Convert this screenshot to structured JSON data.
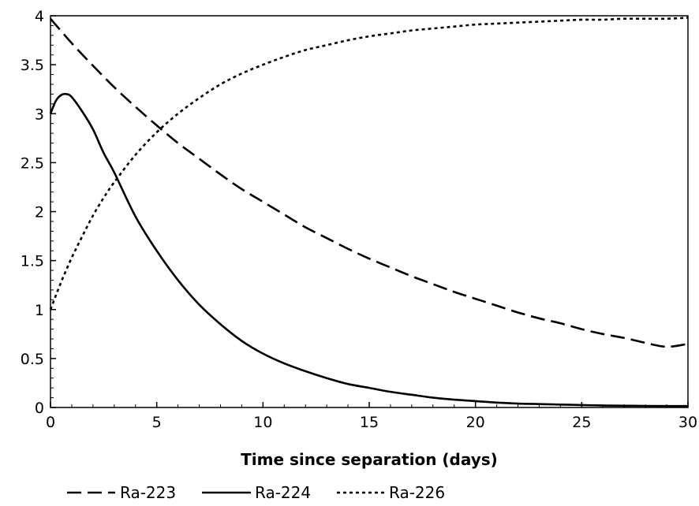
{
  "chart_data": {
    "type": "line",
    "title": "",
    "xlabel": "Time since separation (days)",
    "ylabel": "",
    "xlim": [
      0,
      30
    ],
    "ylim": [
      0,
      4
    ],
    "xticks": [
      "0",
      "5",
      "10",
      "15",
      "20",
      "25",
      "30"
    ],
    "yticks": [
      "0",
      "0.5",
      "1",
      "1.5",
      "2",
      "2.5",
      "3",
      "3.5",
      "4"
    ],
    "grid": false,
    "legend_position": "bottom-left",
    "series": [
      {
        "name": "Ra-223",
        "style": "dashed",
        "color": "#000000",
        "x": [
          0,
          1,
          2,
          3,
          4,
          5,
          6,
          7,
          8,
          9,
          10,
          11,
          12,
          13,
          14,
          15,
          16,
          17,
          18,
          19,
          20,
          21,
          22,
          23,
          24,
          25,
          26,
          27,
          28,
          29,
          30
        ],
        "y": [
          3.97,
          3.72,
          3.49,
          3.27,
          3.07,
          2.88,
          2.7,
          2.54,
          2.38,
          2.23,
          2.1,
          1.97,
          1.84,
          1.73,
          1.62,
          1.52,
          1.43,
          1.34,
          1.26,
          1.18,
          1.11,
          1.04,
          0.97,
          0.91,
          0.86,
          0.8,
          0.75,
          0.71,
          0.66,
          0.62,
          0.65
        ]
      },
      {
        "name": "Ra-224",
        "style": "solid",
        "color": "#000000",
        "x": [
          0,
          0.25,
          0.5,
          0.75,
          1,
          1.5,
          2,
          2.5,
          3,
          4,
          5,
          6,
          7,
          8,
          9,
          10,
          11,
          12,
          13,
          14,
          15,
          16,
          17,
          18,
          19,
          20,
          21,
          22,
          23,
          24,
          25,
          26,
          27,
          28,
          29,
          30
        ],
        "y": [
          3.0,
          3.13,
          3.19,
          3.2,
          3.17,
          3.02,
          2.84,
          2.6,
          2.4,
          1.95,
          1.6,
          1.3,
          1.05,
          0.85,
          0.68,
          0.55,
          0.45,
          0.37,
          0.3,
          0.24,
          0.2,
          0.16,
          0.13,
          0.1,
          0.08,
          0.065,
          0.05,
          0.04,
          0.035,
          0.03,
          0.025,
          0.02,
          0.018,
          0.016,
          0.015,
          0.015
        ]
      },
      {
        "name": "Ra-226",
        "style": "dotted",
        "color": "#000000",
        "x": [
          0,
          0.5,
          1,
          1.5,
          2,
          2.5,
          3,
          4,
          5,
          6,
          7,
          8,
          9,
          10,
          11,
          12,
          13,
          14,
          15,
          16,
          17,
          18,
          19,
          20,
          21,
          22,
          23,
          24,
          25,
          26,
          27,
          28,
          29,
          30
        ],
        "y": [
          1.0,
          1.28,
          1.53,
          1.75,
          1.96,
          2.14,
          2.3,
          2.58,
          2.81,
          3.0,
          3.16,
          3.3,
          3.41,
          3.5,
          3.58,
          3.65,
          3.7,
          3.75,
          3.79,
          3.82,
          3.85,
          3.87,
          3.89,
          3.91,
          3.92,
          3.93,
          3.94,
          3.95,
          3.96,
          3.96,
          3.97,
          3.97,
          3.97,
          3.98
        ]
      }
    ]
  }
}
